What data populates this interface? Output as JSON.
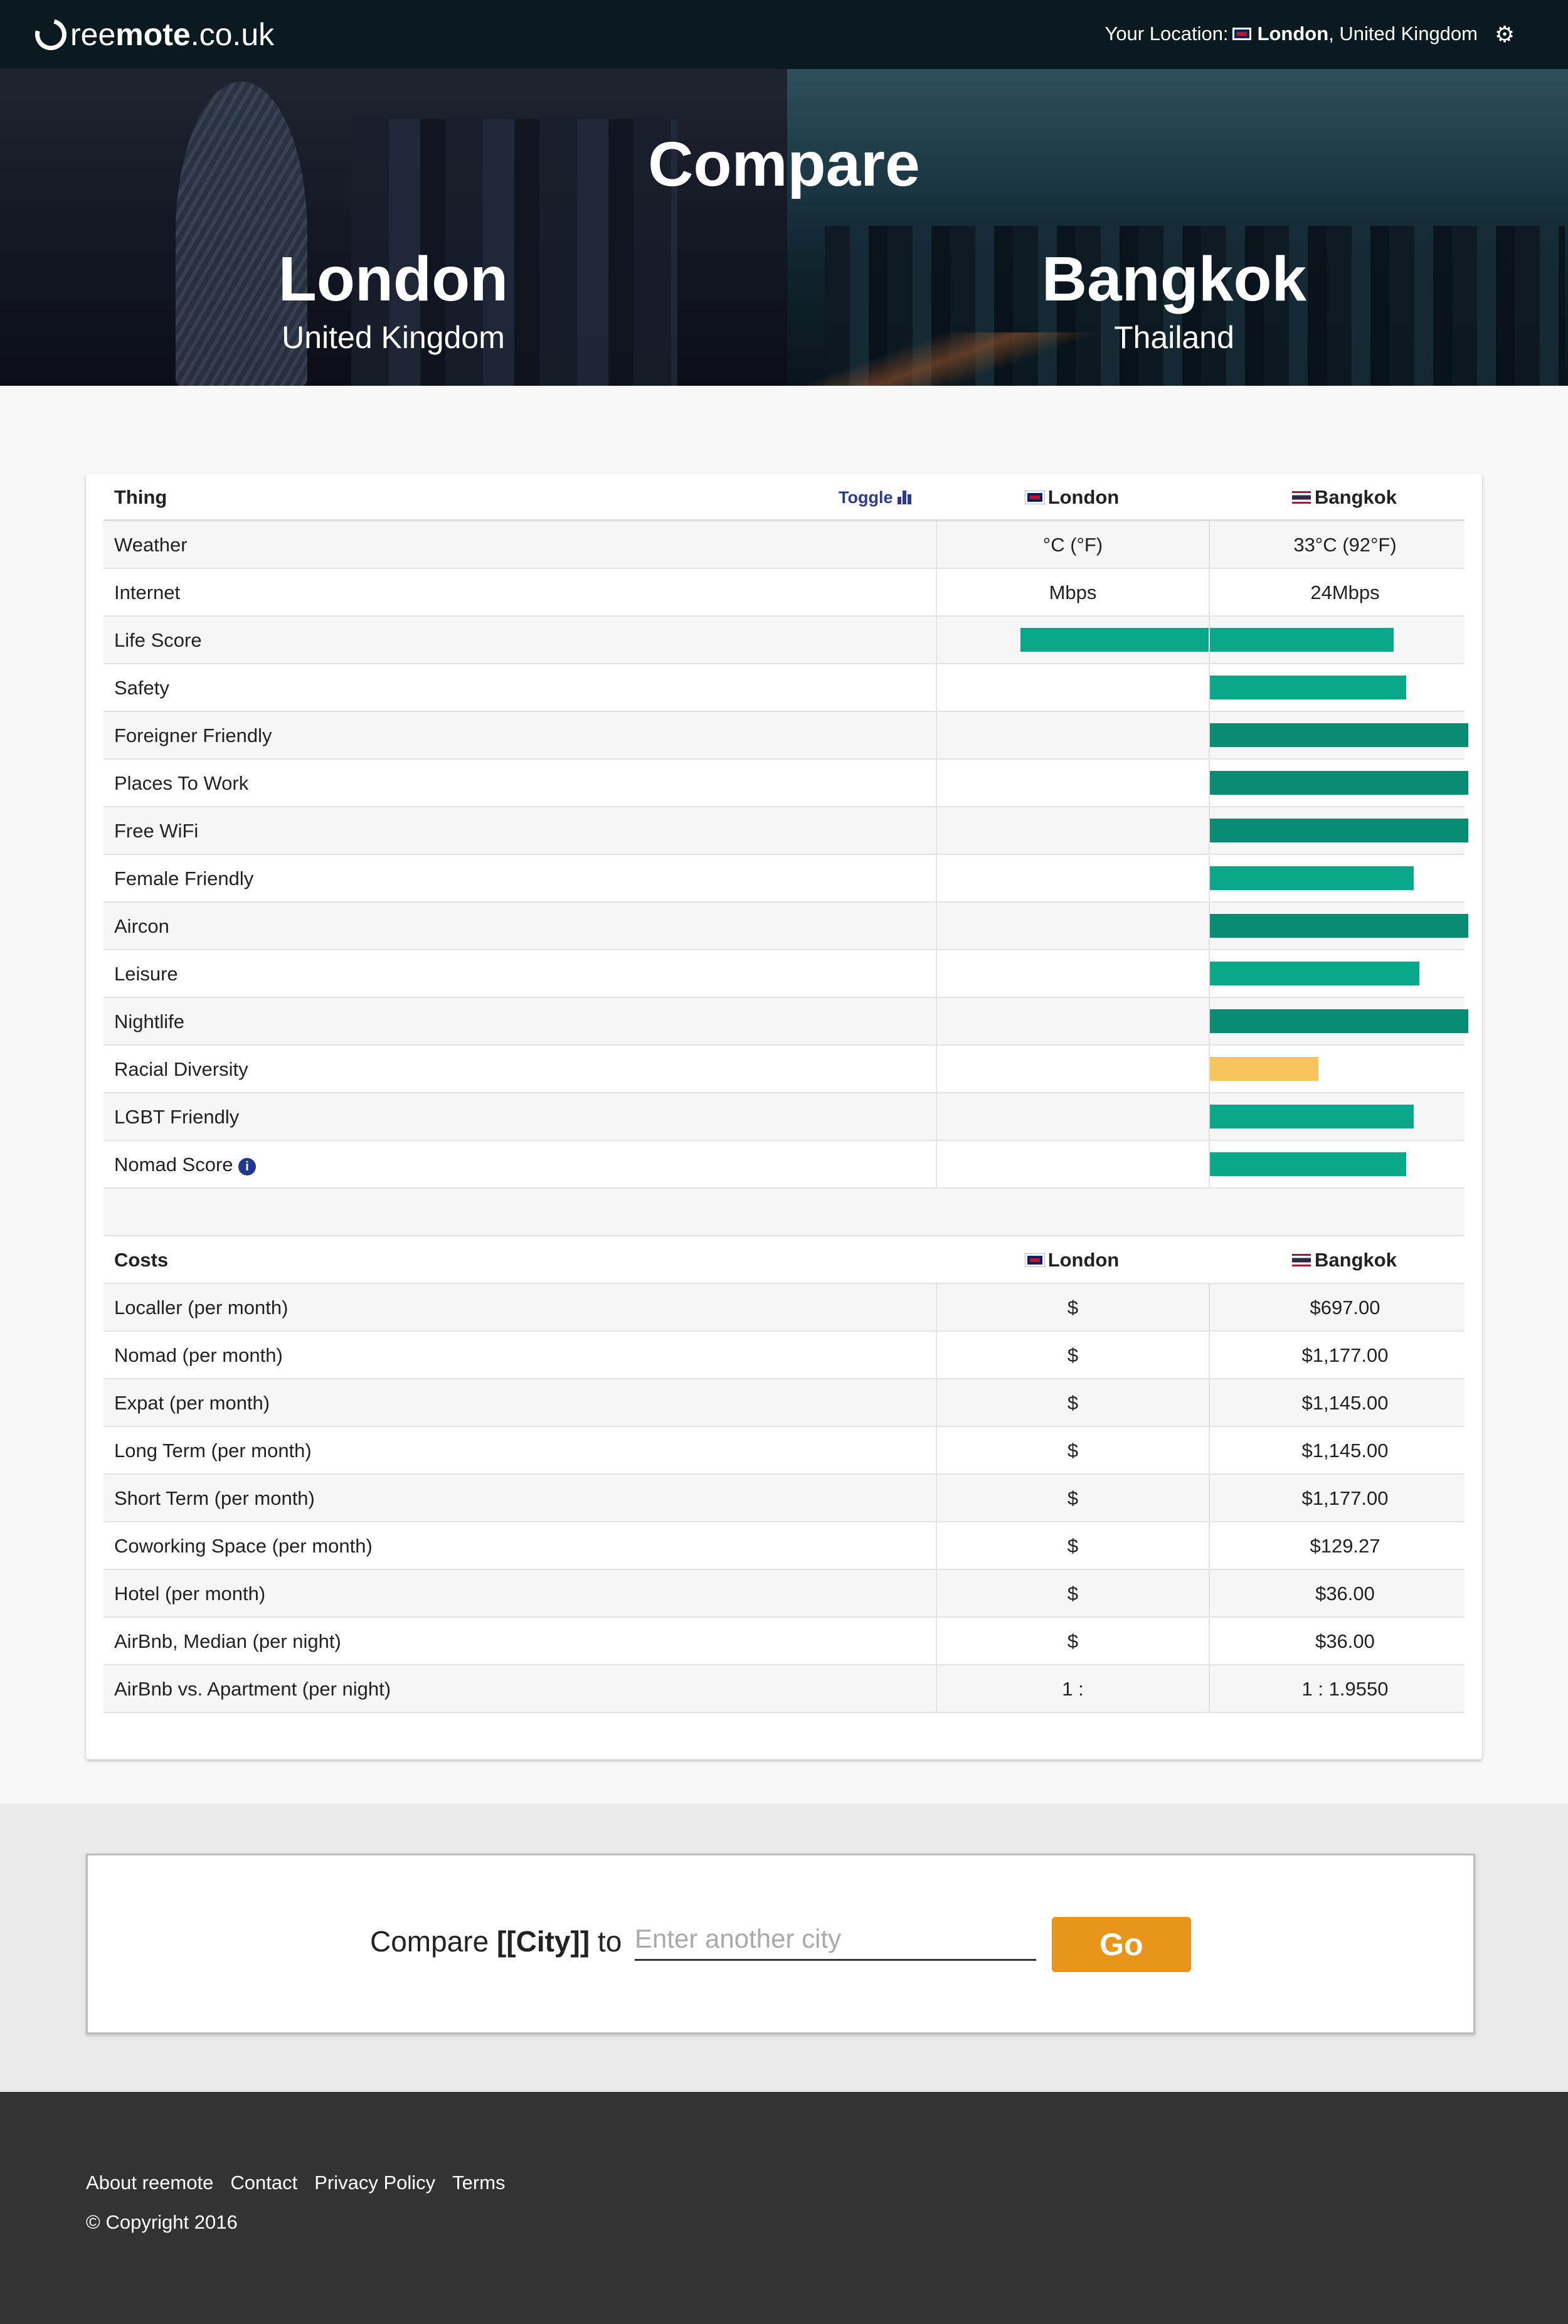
{
  "nav": {
    "logo_pre": "ree",
    "logo_bold": "mote",
    "logo_post": ".co.uk",
    "location_label": "Your Location:",
    "location_city": "London",
    "location_country": ", United Kingdom",
    "settings_icon": "gear-icon"
  },
  "hero": {
    "title": "Compare",
    "left": {
      "city": "London",
      "country": "United Kingdom"
    },
    "right": {
      "city": "Bangkok",
      "country": "Thailand"
    }
  },
  "table": {
    "header": {
      "thing": "Thing",
      "toggle": "Toggle",
      "col1": "London",
      "col2": "Bangkok"
    },
    "weather": {
      "label": "Weather",
      "v1": "°C (°F)",
      "v2": "33°C (92°F)"
    },
    "internet": {
      "label": "Internet",
      "v1": "Mbps",
      "v2": "24Mbps"
    },
    "scores": [
      {
        "label": "Life Score",
        "london": 0.69,
        "bangkok": 0.71,
        "color": "#0aa88a"
      },
      {
        "label": "Safety",
        "london": 0,
        "bangkok": 0.76,
        "color": "#0aa88a"
      },
      {
        "label": "Foreigner Friendly",
        "london": 0,
        "bangkok": 1.0,
        "color": "#0a8c72"
      },
      {
        "label": "Places To Work",
        "london": 0,
        "bangkok": 1.0,
        "color": "#0a8c72"
      },
      {
        "label": "Free WiFi",
        "london": 0,
        "bangkok": 1.0,
        "color": "#0a8c72"
      },
      {
        "label": "Female Friendly",
        "london": 0,
        "bangkok": 0.79,
        "color": "#0aa88a"
      },
      {
        "label": "Aircon",
        "london": 0,
        "bangkok": 1.0,
        "color": "#0a8c72"
      },
      {
        "label": "Leisure",
        "london": 0,
        "bangkok": 0.81,
        "color": "#0aa88a"
      },
      {
        "label": "Nightlife",
        "london": 0,
        "bangkok": 1.0,
        "color": "#0a8c72"
      },
      {
        "label": "Racial Diversity",
        "london": 0,
        "bangkok": 0.42,
        "color": "#f6c35c"
      },
      {
        "label": "LGBT Friendly",
        "london": 0,
        "bangkok": 0.79,
        "color": "#0aa88a"
      },
      {
        "label": "Nomad Score",
        "london": 0,
        "bangkok": 0.76,
        "color": "#0aa88a",
        "info": true
      }
    ]
  },
  "costs": {
    "header": {
      "title": "Costs",
      "col1": "London",
      "col2": "Bangkok"
    },
    "rows": [
      {
        "label": "Localler (per month)",
        "v1": "$",
        "v2": "$697.00"
      },
      {
        "label": "Nomad (per month)",
        "v1": "$",
        "v2": "$1,177.00"
      },
      {
        "label": "Expat (per month)",
        "v1": "$",
        "v2": "$1,145.00"
      },
      {
        "label": "Long Term (per month)",
        "v1": "$",
        "v2": "$1,145.00"
      },
      {
        "label": "Short Term (per month)",
        "v1": "$",
        "v2": "$1,177.00"
      },
      {
        "label": "Coworking Space (per month)",
        "v1": "$",
        "v2": "$129.27"
      },
      {
        "label": "Hotel (per month)",
        "v1": "$",
        "v2": "$36.00"
      },
      {
        "label": "AirBnb, Median (per night)",
        "v1": "$",
        "v2": "$36.00"
      },
      {
        "label": "AirBnb vs. Apartment (per night)",
        "v1": "1 :",
        "v2": "1 : 1.9550"
      }
    ]
  },
  "compare": {
    "prefix": "Compare ",
    "city_token": "[[City]]",
    "suffix": " to",
    "placeholder": "Enter another city",
    "button": "Go"
  },
  "footer": {
    "links": [
      "About reemote",
      "Contact",
      "Privacy Policy",
      "Terms"
    ],
    "copyright": "© Copyright 2016"
  }
}
